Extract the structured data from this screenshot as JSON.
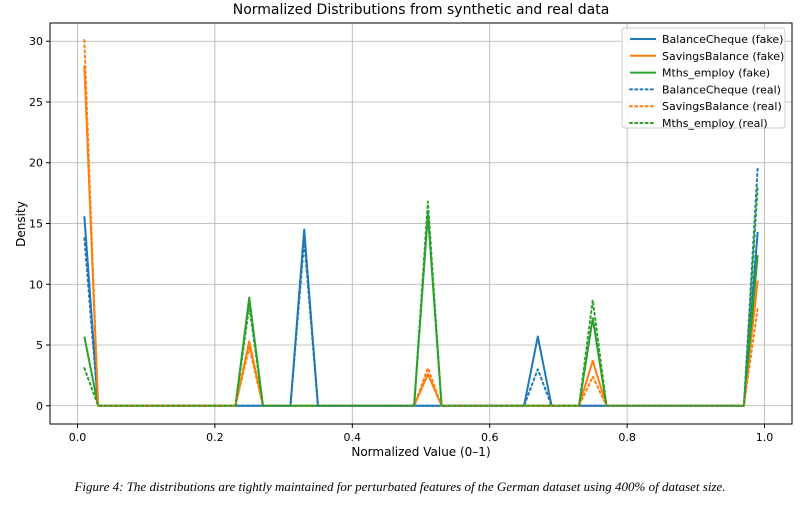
{
  "chart_data": {
    "type": "line",
    "title": "Normalized Distributions from synthetic and real data",
    "xlabel": "Normalized Value (0–1)",
    "ylabel": "Density",
    "xlim": [
      -0.04,
      1.04
    ],
    "ylim": [
      -1.5,
      31.5
    ],
    "xticks": [
      0.0,
      0.2,
      0.4,
      0.6,
      0.8,
      1.0
    ],
    "xtick_labels": [
      "0.0",
      "0.2",
      "0.4",
      "0.6",
      "0.8",
      "1.0"
    ],
    "yticks": [
      0,
      5,
      10,
      15,
      20,
      25,
      30
    ],
    "ytick_labels": [
      "0",
      "5",
      "10",
      "15",
      "20",
      "25",
      "30"
    ],
    "grid": true,
    "legend_position": "top-right",
    "x": [
      0.01,
      0.03,
      0.05,
      0.07,
      0.09,
      0.11,
      0.13,
      0.15,
      0.17,
      0.19,
      0.21,
      0.23,
      0.25,
      0.27,
      0.29,
      0.31,
      0.33,
      0.35,
      0.37,
      0.39,
      0.41,
      0.43,
      0.45,
      0.47,
      0.49,
      0.51,
      0.53,
      0.55,
      0.57,
      0.59,
      0.61,
      0.63,
      0.65,
      0.67,
      0.69,
      0.71,
      0.73,
      0.75,
      0.77,
      0.79,
      0.81,
      0.83,
      0.85,
      0.87,
      0.89,
      0.91,
      0.93,
      0.95,
      0.97,
      0.99
    ],
    "series": [
      {
        "name": "BalanceCheque (fake)",
        "color": "#1f77b4",
        "style": "solid",
        "values": [
          15.6,
          0,
          0,
          0,
          0,
          0,
          0,
          0,
          0,
          0,
          0,
          0,
          0,
          0,
          0,
          0,
          14.5,
          0,
          0,
          0,
          0,
          0,
          0,
          0,
          0,
          0,
          0,
          0,
          0,
          0,
          0,
          0,
          0,
          5.7,
          0,
          0,
          0,
          0,
          0,
          0,
          0,
          0,
          0,
          0,
          0,
          0,
          0,
          0,
          0,
          14.3
        ]
      },
      {
        "name": "SavingsBalance (fake)",
        "color": "#ff7f0e",
        "style": "solid",
        "values": [
          28.0,
          0,
          0,
          0,
          0,
          0,
          0,
          0,
          0,
          0,
          0,
          0,
          5.3,
          0,
          0,
          0,
          0,
          0,
          0,
          0,
          0,
          0,
          0,
          0,
          0,
          2.6,
          0,
          0,
          0,
          0,
          0,
          0,
          0,
          0,
          0,
          0,
          0,
          3.7,
          0,
          0,
          0,
          0,
          0,
          0,
          0,
          0,
          0,
          0,
          0,
          10.3
        ]
      },
      {
        "name": "Mths_employ (fake)",
        "color": "#2ca02c",
        "style": "solid",
        "values": [
          5.7,
          0,
          0,
          0,
          0,
          0,
          0,
          0,
          0,
          0,
          0,
          0,
          8.9,
          0,
          0,
          0,
          0,
          0,
          0,
          0,
          0,
          0,
          0,
          0,
          0,
          15.8,
          0,
          0,
          0,
          0,
          0,
          0,
          0,
          0,
          0,
          0,
          0,
          7.2,
          0,
          0,
          0,
          0,
          0,
          0,
          0,
          0,
          0,
          0,
          0,
          12.4
        ]
      },
      {
        "name": "BalanceCheque (real)",
        "color": "#1f77b4",
        "style": "dotted",
        "values": [
          13.8,
          0,
          0,
          0,
          0,
          0,
          0,
          0,
          0,
          0,
          0,
          0,
          0,
          0,
          0,
          0,
          13.6,
          0,
          0,
          0,
          0,
          0,
          0,
          0,
          0,
          0,
          0,
          0,
          0,
          0,
          0,
          0,
          0,
          3.0,
          0,
          0,
          0,
          0,
          0,
          0,
          0,
          0,
          0,
          0,
          0,
          0,
          0,
          0,
          0,
          19.6
        ]
      },
      {
        "name": "SavingsBalance (real)",
        "color": "#ff7f0e",
        "style": "dotted",
        "values": [
          30.1,
          0,
          0,
          0,
          0,
          0,
          0,
          0,
          0,
          0,
          0,
          0,
          4.8,
          0,
          0,
          0,
          0,
          0,
          0,
          0,
          0,
          0,
          0,
          0,
          0,
          3.1,
          0,
          0,
          0,
          0,
          0,
          0,
          0,
          0,
          0,
          0,
          0,
          2.4,
          0,
          0,
          0,
          0,
          0,
          0,
          0,
          0,
          0,
          0,
          0,
          8.0
        ]
      },
      {
        "name": "Mths_employ (real)",
        "color": "#2ca02c",
        "style": "dotted",
        "values": [
          3.1,
          0,
          0,
          0,
          0,
          0,
          0,
          0,
          0,
          0,
          0,
          0,
          8.2,
          0,
          0,
          0,
          0,
          0,
          0,
          0,
          0,
          0,
          0,
          0,
          0,
          16.8,
          0,
          0,
          0,
          0,
          0,
          0,
          0,
          0,
          0,
          0,
          0,
          8.7,
          0,
          0,
          0,
          0,
          0,
          0,
          0,
          0,
          0,
          0,
          0,
          18.0
        ]
      }
    ]
  },
  "caption": "Figure 4: The distributions are tightly maintained for perturbated features of the German dataset using 400% of dataset size."
}
